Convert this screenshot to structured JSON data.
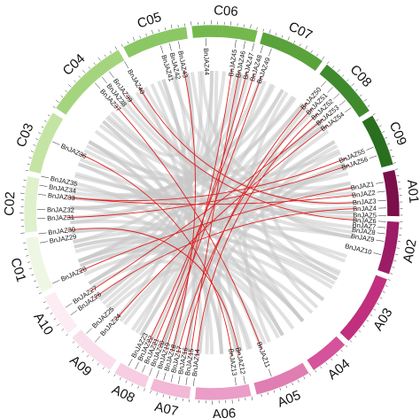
{
  "chromosomes": [
    {
      "name": "A01",
      "start": 76,
      "end": 92,
      "color": "#7a0f4a"
    },
    {
      "name": "A02",
      "start": 92,
      "end": 110,
      "color": "#9c1c66"
    },
    {
      "name": "A03",
      "start": 110,
      "end": 134,
      "color": "#c0307f"
    },
    {
      "name": "A04",
      "start": 134,
      "end": 148,
      "color": "#d4539a"
    },
    {
      "name": "A05",
      "start": 148,
      "end": 167,
      "color": "#e07db2"
    },
    {
      "name": "A06",
      "start": 167,
      "end": 186,
      "color": "#ea9dc6"
    },
    {
      "name": "A07",
      "start": 186,
      "end": 200,
      "color": "#f2b8d6"
    },
    {
      "name": "A08",
      "start": 200,
      "end": 212,
      "color": "#f6cde2"
    },
    {
      "name": "A09",
      "start": 212,
      "end": 229,
      "color": "#f9dfec"
    },
    {
      "name": "A10",
      "start": 229,
      "end": 244,
      "color": "#fcedf4"
    },
    {
      "name": "C01",
      "start": 244,
      "end": 263,
      "color": "#eef7e4"
    },
    {
      "name": "C02",
      "start": 263,
      "end": 282,
      "color": "#dff0cd"
    },
    {
      "name": "C03",
      "start": 282,
      "end": 303,
      "color": "#c4e4a3"
    },
    {
      "name": "C04",
      "start": 303,
      "end": 331,
      "color": "#a5d47e"
    },
    {
      "name": "C05",
      "start": 331,
      "end": 353,
      "color": "#8cc766"
    },
    {
      "name": "C06",
      "start": 353,
      "end": 375,
      "color": "#74b84d"
    },
    {
      "name": "C07",
      "start": 375,
      "end": 397,
      "color": "#5aa23c"
    },
    {
      "name": "C08",
      "start": 397,
      "end": 418,
      "color": "#3f8a2d"
    },
    {
      "name": "C09",
      "start": 418,
      "end": 436,
      "color": "#2a6e1f"
    }
  ],
  "genes": [
    {
      "name": "BnJAZ1",
      "angle": 80
    },
    {
      "name": "BnJAZ2",
      "angle": 83
    },
    {
      "name": "BnJAZ3",
      "angle": 86
    },
    {
      "name": "BnJAZ4",
      "angle": 88.5
    },
    {
      "name": "BnJAZ5",
      "angle": 91
    },
    {
      "name": "BnJAZ6",
      "angle": 93
    },
    {
      "name": "BnJAZ7",
      "angle": 95
    },
    {
      "name": "BnJAZ8",
      "angle": 97
    },
    {
      "name": "BnJAZ9",
      "angle": 99.5
    },
    {
      "name": "BnJAZ10",
      "angle": 104
    },
    {
      "name": "BnJAZ11",
      "angle": 160
    },
    {
      "name": "BnJAZ12",
      "angle": 169
    },
    {
      "name": "BnJAZ13",
      "angle": 172
    },
    {
      "name": "BnJAZ14",
      "angle": 186
    },
    {
      "name": "BnJAZ15",
      "angle": 188.5
    },
    {
      "name": "BnJAZ16",
      "angle": 191
    },
    {
      "name": "BnJAZ17",
      "angle": 193.5
    },
    {
      "name": "BnJAZ18",
      "angle": 196
    },
    {
      "name": "BnJAZ19",
      "angle": 198.5
    },
    {
      "name": "BnJAZ20",
      "angle": 201
    },
    {
      "name": "BnJAZ21",
      "angle": 203.5
    },
    {
      "name": "BnJAZ22",
      "angle": 206
    },
    {
      "name": "BnJAZ23",
      "angle": 208.5
    },
    {
      "name": "BnJAZ24",
      "angle": 222
    },
    {
      "name": "BnJAZ25",
      "angle": 226
    },
    {
      "name": "BnJAZ26",
      "angle": 234
    },
    {
      "name": "BnJAZ27",
      "angle": 237
    },
    {
      "name": "BnJAZ28",
      "angle": 246
    },
    {
      "name": "BnJAZ29",
      "angle": 260
    },
    {
      "name": "BnJAZ30",
      "angle": 263
    },
    {
      "name": "BnJAZ31",
      "angle": 268
    },
    {
      "name": "BnJAZ32",
      "angle": 271
    },
    {
      "name": "BnJAZ33",
      "angle": 276
    },
    {
      "name": "BnJAZ34",
      "angle": 279
    },
    {
      "name": "BnJAZ35",
      "angle": 282
    },
    {
      "name": "BnJAZ36",
      "angle": 294
    },
    {
      "name": "BnJAZ37",
      "angle": 318
    },
    {
      "name": "BnJAZ38",
      "angle": 321
    },
    {
      "name": "BnJAZ39",
      "angle": 324
    },
    {
      "name": "BnJAZ40",
      "angle": 330
    },
    {
      "name": "BnJAZ41",
      "angle": 343
    },
    {
      "name": "BnJAZ42",
      "angle": 346
    },
    {
      "name": "BnJAZ43",
      "angle": 349
    },
    {
      "name": "BnJAZ44",
      "angle": 358
    },
    {
      "name": "BnJAZ45",
      "angle": 368
    },
    {
      "name": "BnJAZ46",
      "angle": 371
    },
    {
      "name": "BnJAZ47",
      "angle": 374
    },
    {
      "name": "BnJAZ48",
      "angle": 377
    },
    {
      "name": "BnJAZ49",
      "angle": 380
    },
    {
      "name": "BnJAZ50",
      "angle": 401
    },
    {
      "name": "BnJAZ51",
      "angle": 404
    },
    {
      "name": "BnJAZ52",
      "angle": 407
    },
    {
      "name": "BnJAZ53",
      "angle": 410
    },
    {
      "name": "BnJAZ54",
      "angle": 413
    },
    {
      "name": "BnJAZ55",
      "angle": 428
    },
    {
      "name": "BnJAZ56",
      "angle": 431
    }
  ],
  "red_links": [
    [
      "BnJAZ43",
      "BnJAZ18"
    ],
    [
      "BnJAZ45",
      "BnJAZ19"
    ],
    [
      "BnJAZ47",
      "BnJAZ21"
    ],
    [
      "BnJAZ48",
      "BnJAZ22"
    ],
    [
      "BnJAZ40",
      "BnJAZ3"
    ],
    [
      "BnJAZ39",
      "BnJAZ6"
    ],
    [
      "BnJAZ53",
      "BnJAZ27"
    ],
    [
      "BnJAZ50",
      "BnJAZ16"
    ],
    [
      "BnJAZ55",
      "BnJAZ33"
    ],
    [
      "BnJAZ56",
      "BnJAZ31"
    ],
    [
      "BnJAZ33",
      "BnJAZ2"
    ],
    [
      "BnJAZ30",
      "BnJAZ12"
    ],
    [
      "BnJAZ28",
      "BnJAZ1"
    ],
    [
      "BnJAZ26",
      "BnJAZ4"
    ],
    [
      "BnJAZ24",
      "BnJAZ54"
    ],
    [
      "BnJAZ14",
      "BnJAZ52"
    ],
    [
      "BnJAZ13",
      "BnJAZ36"
    ],
    [
      "BnJAZ11",
      "BnJAZ37"
    ],
    [
      "BnJAZ17",
      "BnJAZ51"
    ],
    [
      "BnJAZ20",
      "BnJAZ49"
    ],
    [
      "BnJAZ15",
      "BnJAZ46"
    ]
  ],
  "gray_links": [
    [
      300,
      170
    ],
    [
      305,
      160
    ],
    [
      310,
      150
    ],
    [
      296,
      140
    ],
    [
      315,
      128
    ],
    [
      290,
      118
    ],
    [
      320,
      110
    ],
    [
      325,
      98
    ],
    [
      285,
      90
    ],
    [
      280,
      80
    ],
    [
      335,
      182
    ],
    [
      340,
      190
    ],
    [
      345,
      200
    ],
    [
      350,
      212
    ],
    [
      355,
      222
    ],
    [
      360,
      232
    ],
    [
      365,
      240
    ],
    [
      370,
      250
    ],
    [
      375,
      258
    ],
    [
      380,
      266
    ],
    [
      385,
      272
    ],
    [
      390,
      278
    ],
    [
      395,
      250
    ],
    [
      400,
      240
    ],
    [
      405,
      230
    ],
    [
      410,
      220
    ],
    [
      415,
      210
    ],
    [
      420,
      200
    ],
    [
      425,
      195
    ],
    [
      430,
      185
    ],
    [
      262,
      120
    ],
    [
      258,
      100
    ],
    [
      250,
      88
    ],
    [
      240,
      78
    ],
    [
      233,
      430
    ],
    [
      228,
      420
    ],
    [
      218,
      410
    ],
    [
      214,
      400
    ],
    [
      210,
      390
    ],
    [
      205,
      382
    ],
    [
      200,
      360
    ],
    [
      196,
      340
    ],
    [
      190,
      330
    ],
    [
      185,
      310
    ],
    [
      180,
      300
    ],
    [
      176,
      290
    ],
    [
      170,
      282
    ],
    [
      165,
      272
    ],
    [
      158,
      262
    ],
    [
      150,
      254
    ],
    [
      145,
      248
    ],
    [
      140,
      244
    ],
    [
      135,
      250
    ],
    [
      128,
      256
    ],
    [
      122,
      266
    ],
    [
      115,
      276
    ],
    [
      108,
      286
    ],
    [
      100,
      300
    ],
    [
      96,
      312
    ],
    [
      90,
      322
    ],
    [
      86,
      332
    ],
    [
      82,
      344
    ],
    [
      78,
      356
    ],
    [
      272,
      372
    ],
    [
      276,
      386
    ],
    [
      268,
      396
    ],
    [
      292,
      412
    ],
    [
      298,
      424
    ],
    [
      308,
      434
    ],
    [
      313,
      350
    ],
    [
      328,
      118
    ],
    [
      338,
      140
    ],
    [
      352,
      150
    ],
    [
      362,
      168
    ],
    [
      372,
      176
    ],
    [
      392,
      156
    ],
    [
      402,
      132
    ],
    [
      412,
      116
    ],
    [
      422,
      100
    ],
    [
      432,
      92
    ],
    [
      256,
      140
    ],
    [
      248,
      164
    ],
    [
      238,
      176
    ],
    [
      226,
      152
    ]
  ]
}
